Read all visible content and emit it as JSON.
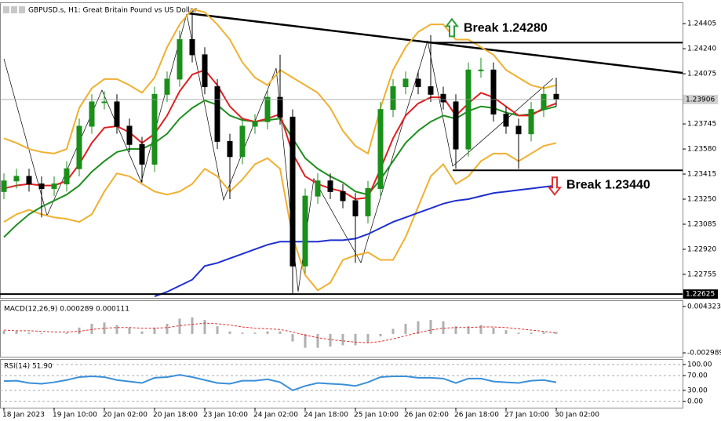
{
  "chart_data": [
    {
      "type": "candlestick",
      "title": "GBPUSD.s, H1:  Great Britain Pound vs US Dollar",
      "categories": [
        "18 Jan 2023",
        null,
        null,
        null,
        "19 Jan 10:00",
        null,
        null,
        null,
        "20 Jan 02:00",
        null,
        null,
        null,
        "20 Jan 18:00",
        null,
        null,
        null,
        "23 Jan 10:00",
        null,
        null,
        null,
        "24 Jan 02:00",
        null,
        null,
        null,
        "24 Jan 18:00",
        null,
        null,
        null,
        "25 Jan 10:00",
        null,
        null,
        null,
        "26 Jan 02:00",
        null,
        null,
        null,
        "26 Jan 18:00",
        null,
        null,
        null,
        "27 Jan 10:00",
        null,
        null,
        null,
        "30 Jan 02:00"
      ],
      "open": [
        1.233,
        1.2337,
        1.234,
        1.2335,
        1.2332,
        1.2335,
        1.2345,
        1.2373,
        1.2389,
        1.2389,
        1.2373,
        1.2361,
        1.2348,
        1.2394,
        1.2404,
        1.243,
        1.242,
        1.2399,
        1.2363,
        1.2353,
        1.2373,
        1.2376,
        1.2392,
        1.2379,
        1.2281,
        1.2327,
        1.2337,
        1.233,
        1.2324,
        1.2314,
        1.2332,
        1.2384,
        1.2399,
        1.2404,
        1.2399,
        1.2394,
        1.2389,
        1.2358,
        1.241,
        1.241,
        1.2381,
        1.2373,
        1.2368,
        1.2384,
        1.2394
      ],
      "high": [
        1.2342,
        1.2345,
        1.2345,
        1.234,
        1.234,
        1.235,
        1.2378,
        1.2394,
        1.2396,
        1.2394,
        1.2378,
        1.2366,
        1.2399,
        1.2409,
        1.2436,
        1.2448,
        1.2425,
        1.2404,
        1.2368,
        1.2378,
        1.2381,
        1.2397,
        1.242,
        1.2384,
        1.2332,
        1.2342,
        1.2342,
        1.2335,
        1.2329,
        1.2337,
        1.2389,
        1.2404,
        1.2409,
        1.2409,
        1.2433,
        1.2399,
        1.2394,
        1.2415,
        1.2418,
        1.2415,
        1.2386,
        1.2378,
        1.2389,
        1.2399,
        1.2405
      ],
      "low": [
        1.2325,
        1.2332,
        1.233,
        1.2313,
        1.2327,
        1.233,
        1.234,
        1.2368,
        1.2384,
        1.2368,
        1.2356,
        1.2336,
        1.2343,
        1.2389,
        1.2399,
        1.2415,
        1.2394,
        1.2358,
        1.2325,
        1.2348,
        1.2368,
        1.2371,
        1.2374,
        1.2263,
        1.2276,
        1.2322,
        1.2325,
        1.2319,
        1.2283,
        1.2309,
        1.2327,
        1.2379,
        1.2394,
        1.2394,
        1.2389,
        1.2384,
        1.2345,
        1.2353,
        1.2405,
        1.2376,
        1.2368,
        1.2345,
        1.2363,
        1.2379,
        1.2386
      ],
      "close": [
        1.2337,
        1.234,
        1.2335,
        1.2332,
        1.2335,
        1.2345,
        1.2373,
        1.2389,
        1.2389,
        1.2373,
        1.2361,
        1.2348,
        1.2394,
        1.2404,
        1.243,
        1.242,
        1.2399,
        1.2363,
        1.2353,
        1.2373,
        1.2376,
        1.2392,
        1.2379,
        1.2281,
        1.2327,
        1.2337,
        1.233,
        1.2324,
        1.2314,
        1.2332,
        1.2384,
        1.2399,
        1.2404,
        1.2399,
        1.2394,
        1.2389,
        1.2358,
        1.241,
        1.241,
        1.2381,
        1.2373,
        1.2368,
        1.2384,
        1.2394,
        1.2391
      ],
      "up_color": "#1a8f1a",
      "down_color": "#000000",
      "series": [
        {
          "color": "#f0b030",
          "values": [
            1.2365,
            1.2362,
            1.2358,
            1.2356,
            1.2355,
            1.2358,
            1.2385,
            1.2398,
            1.2404,
            1.2404,
            1.24,
            1.2395,
            1.2405,
            1.2425,
            1.244,
            1.245,
            1.2448,
            1.244,
            1.243,
            1.2415,
            1.2405,
            1.24,
            1.241,
            1.2405,
            1.24,
            1.2395,
            1.2385,
            1.237,
            1.236,
            1.2355,
            1.2385,
            1.241,
            1.2425,
            1.2435,
            1.244,
            1.244,
            1.243,
            1.243,
            1.2425,
            1.242,
            1.241,
            1.2405,
            1.24,
            1.2398,
            1.24
          ]
        },
        {
          "color": "#f0b030",
          "values": [
            1.231,
            1.2315,
            1.2318,
            1.2315,
            1.2313,
            1.2312,
            1.231,
            1.2315,
            1.233,
            1.2342,
            1.234,
            1.2335,
            1.233,
            1.2328,
            1.233,
            1.2335,
            1.2345,
            1.234,
            1.233,
            1.2338,
            1.2348,
            1.2352,
            1.2345,
            1.23,
            1.2275,
            1.2265,
            1.227,
            1.2285,
            1.2288,
            1.229,
            1.2285,
            1.2285,
            1.23,
            1.232,
            1.234,
            1.2348,
            1.2335,
            1.234,
            1.235,
            1.2355,
            1.2355,
            1.235,
            1.2355,
            1.236,
            1.2362
          ]
        },
        {
          "color": "#1f2fd0",
          "values": [
            null,
            null,
            null,
            null,
            null,
            null,
            null,
            null,
            null,
            null,
            null,
            null,
            1.2261,
            1.2264,
            1.2268,
            1.2272,
            1.2281,
            1.2283,
            1.2286,
            1.2289,
            1.2292,
            1.2295,
            1.2297,
            1.2297,
            1.2297,
            1.2297,
            1.2298,
            1.2298,
            1.2299,
            1.2302,
            1.2306,
            1.231,
            1.2313,
            1.2316,
            1.2319,
            1.2322,
            1.2324,
            1.2325,
            1.2327,
            1.2329,
            1.233,
            1.2331,
            1.2332,
            1.2333,
            1.2334
          ]
        },
        {
          "color": "#1f8f1f",
          "values": [
            1.23,
            1.2308,
            1.2315,
            1.232,
            1.2324,
            1.2328,
            1.2334,
            1.2343,
            1.235,
            1.2356,
            1.2358,
            1.2358,
            1.2362,
            1.2368,
            1.2378,
            1.2385,
            1.239,
            1.2387,
            1.238,
            1.2377,
            1.2376,
            1.2377,
            1.2378,
            1.2365,
            1.2352,
            1.2345,
            1.234,
            1.2336,
            1.233,
            1.2328,
            1.2338,
            1.235,
            1.2362,
            1.237,
            1.2376,
            1.238,
            1.2378,
            1.2383,
            1.2386,
            1.2385,
            1.2382,
            1.238,
            1.2381,
            1.2384,
            1.2386
          ]
        },
        {
          "color": "#e02020",
          "values": [
            1.2332,
            1.2334,
            1.2335,
            1.2334,
            1.2334,
            1.2337,
            1.2348,
            1.2362,
            1.2372,
            1.2373,
            1.2369,
            1.2362,
            1.2368,
            1.238,
            1.2396,
            1.2407,
            1.241,
            1.24,
            1.2386,
            1.2378,
            1.2376,
            1.2378,
            1.2381,
            1.2355,
            1.234,
            1.2335,
            1.2332,
            1.233,
            1.2325,
            1.2326,
            1.2345,
            1.2365,
            1.238,
            1.2388,
            1.2392,
            1.2392,
            1.238,
            1.2388,
            1.2395,
            1.2392,
            1.2386,
            1.238,
            1.238,
            1.2385,
            1.2388
          ]
        }
      ],
      "ylim": [
        1.226,
        1.2454
      ],
      "yticks": [
        1.24405,
        {
          "value": 1.2424,
          "label": "1.24240"
        },
        1.24075,
        1.23745,
        {
          "value": 1.2358,
          "label": "1.23580"
        },
        1.23415,
        {
          "value": 1.2325,
          "label": "1.23250"
        },
        1.23085,
        {
          "value": 1.2292,
          "label": "1.22920"
        },
        1.22755
      ],
      "current_price": 1.23906,
      "support_price": 1.22625,
      "annotations": [
        {
          "label": "Break 1.24280",
          "value": 1.2428,
          "arrow": "up",
          "color": "#2e9e3e"
        },
        {
          "label": "Break 1.23440",
          "value": 1.2344,
          "arrow": "down",
          "color": "#e03030"
        }
      ]
    },
    {
      "type": "bar",
      "title": "MACD(12,26,9) 0.000289 0.000111",
      "color": "#b0b0b0",
      "values": [
        0.0005,
        0.0004,
        0.0002,
        0.0001,
        0.0,
        0.0002,
        0.001,
        0.0016,
        0.0018,
        0.0014,
        0.001,
        0.0004,
        0.001,
        0.0016,
        0.0024,
        0.0026,
        0.0022,
        0.0012,
        0.0004,
        0.0002,
        0.0002,
        0.0004,
        0.0004,
        -0.0012,
        -0.0022,
        -0.0022,
        -0.002,
        -0.0018,
        -0.0018,
        -0.0014,
        -0.0004,
        0.0008,
        0.0016,
        0.002,
        0.0022,
        0.002,
        0.0012,
        0.0012,
        0.0014,
        0.001,
        0.0006,
        0.0002,
        0.0002,
        0.0003,
        0.000289
      ],
      "series": [
        {
          "color": "#e03030",
          "values": [
            0.0006,
            0.0005,
            0.0005,
            0.0004,
            0.0003,
            0.0003,
            0.0004,
            0.0007,
            0.0009,
            0.001,
            0.001,
            0.0009,
            0.0009,
            0.001,
            0.0013,
            0.0015,
            0.0017,
            0.0016,
            0.0014,
            0.0011,
            0.0009,
            0.0008,
            0.0007,
            0.0003,
            -0.0002,
            -0.0006,
            -0.0009,
            -0.0011,
            -0.0013,
            -0.0014,
            -0.0012,
            -0.0008,
            -0.0003,
            0.0002,
            0.0006,
            0.0009,
            0.001,
            0.001,
            0.0011,
            0.0011,
            0.001,
            0.0008,
            0.0006,
            0.0004,
            0.000111
          ]
        }
      ],
      "ylim": [
        -0.0036,
        0.00518
      ],
      "yticks": [
        0.004323,
        -0.002989
      ]
    },
    {
      "type": "line",
      "title": "RSI(14) 51.90",
      "series": [
        {
          "color": "#3a8fd8",
          "values": [
            55,
            56,
            50,
            48,
            52,
            58,
            66,
            68,
            66,
            58,
            54,
            50,
            64,
            66,
            72,
            66,
            58,
            50,
            48,
            56,
            56,
            60,
            52,
            30,
            42,
            50,
            48,
            46,
            42,
            52,
            66,
            68,
            68,
            64,
            64,
            62,
            50,
            62,
            62,
            54,
            52,
            50,
            56,
            58,
            51.9
          ]
        }
      ],
      "ylim": [
        -16.7,
        112.5
      ],
      "yticks": [
        {
          "value": 100,
          "label": "100.00"
        },
        {
          "value": 70,
          "label": "70.00"
        },
        {
          "value": 30,
          "label": "30.00"
        },
        {
          "value": 0,
          "label": "0.00"
        }
      ]
    }
  ]
}
